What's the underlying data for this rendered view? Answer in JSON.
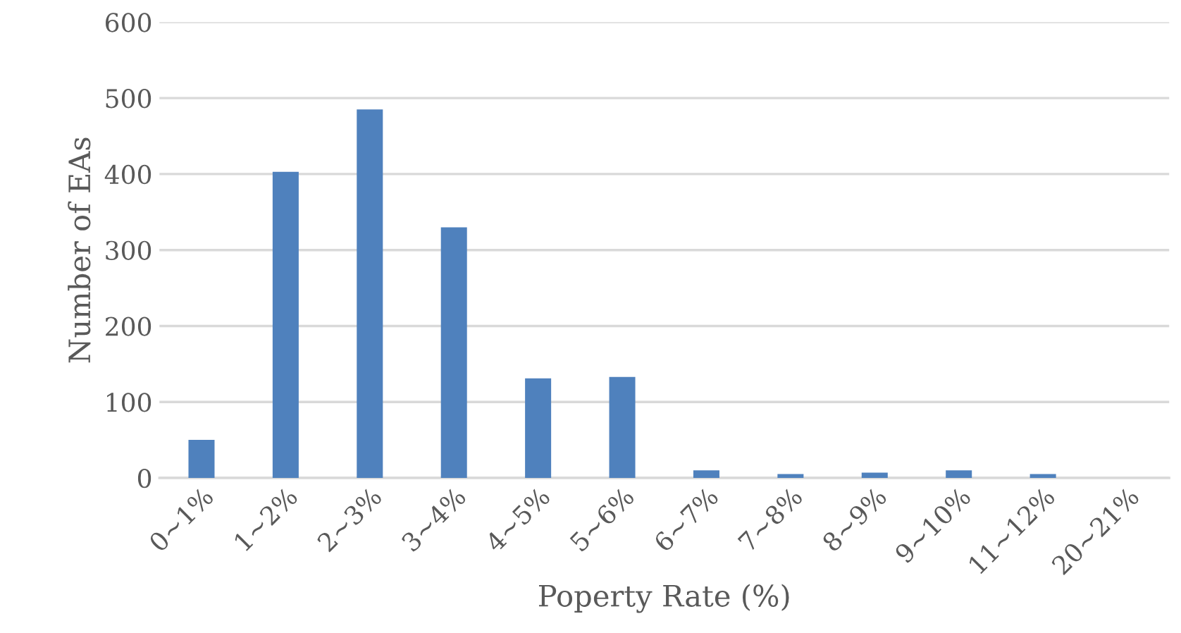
{
  "chart_data": {
    "type": "bar",
    "xlabel": "Poperty Rate (%)",
    "ylabel": "Number of EAs",
    "categories": [
      "0~1%",
      "1~2%",
      "2~3%",
      "3~4%",
      "4~5%",
      "5~6%",
      "6~7%",
      "7~8%",
      "8~9%",
      "9~10%",
      "11~12%",
      "20~21%"
    ],
    "values": [
      50,
      403,
      485,
      330,
      131,
      133,
      10,
      5,
      7,
      10,
      5,
      0
    ],
    "color": "#4f81bd",
    "ylim": [
      0,
      600
    ],
    "yticks": [
      0,
      100,
      200,
      300,
      400,
      500,
      600
    ],
    "grid": "y",
    "legend": false
  }
}
